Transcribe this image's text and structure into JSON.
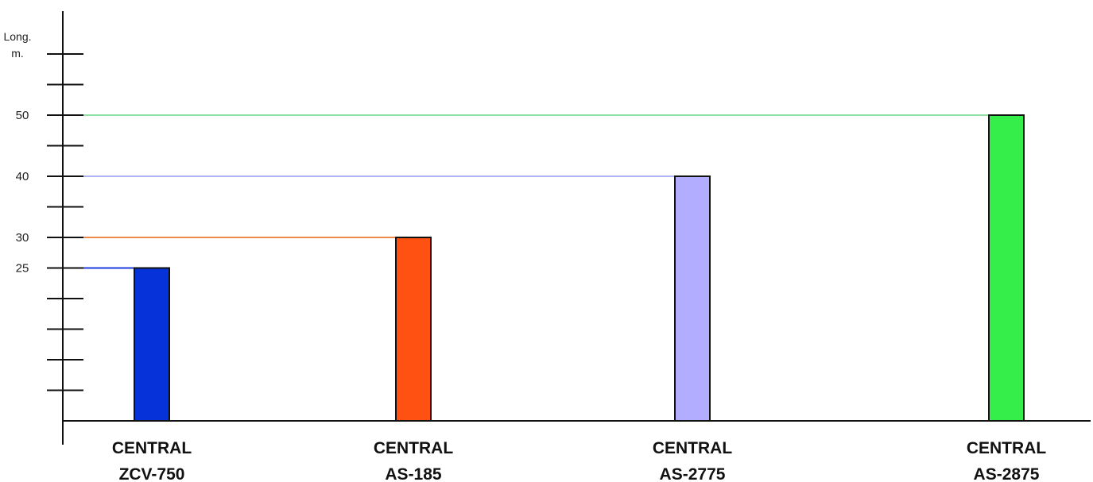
{
  "chart_data": {
    "type": "bar",
    "ylabel": [
      "Long.",
      "m."
    ],
    "ylim": [
      0,
      64
    ],
    "tick_step": 5,
    "labeled_ticks": [
      25,
      30,
      40,
      50
    ],
    "grid": false,
    "reference_lines": true,
    "categories": [
      [
        "CENTRAL",
        "ZCV-750"
      ],
      [
        "CENTRAL",
        "AS-185"
      ],
      [
        "CENTRAL",
        "AS-2775"
      ],
      [
        "CENTRAL",
        "AS-2875"
      ]
    ],
    "values": [
      25,
      30,
      40,
      50
    ],
    "colors": [
      "#0633d9",
      "#ff5112",
      "#b3adff",
      "#35ee4a"
    ],
    "line_colors": [
      "#1f3bdf",
      "#f08a48",
      "#b0b4f2",
      "#8fe0a3"
    ]
  }
}
